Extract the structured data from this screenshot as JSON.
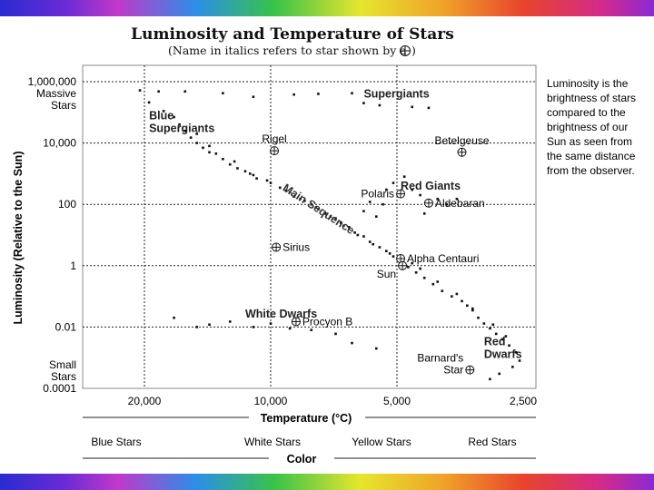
{
  "chart_data": {
    "type": "scatter",
    "title": "Luminosity and Temperature of Stars",
    "subtitle": "(Name in italics refers to star shown by a",
    "subtitle_end": ")",
    "ylabel": "Luminosity (Relative to the Sun)",
    "xlabel": "Temperature (°C)",
    "color_axis_label": "Color",
    "x_scale": "reversed",
    "y_scale": "log",
    "xlim": [
      20000,
      2500
    ],
    "ylim": [
      0.0001,
      1000000
    ],
    "grid": true,
    "x_ticks": [
      {
        "value": 20000,
        "label": "20,000"
      },
      {
        "value": 10000,
        "label": "10,000"
      },
      {
        "value": 5000,
        "label": "5,000"
      },
      {
        "value": 2500,
        "label": "2,500"
      }
    ],
    "y_ticks": [
      {
        "value": 1000000,
        "label": "1,000,000"
      },
      {
        "value": 10000,
        "label": "10,000"
      },
      {
        "value": 100,
        "label": "100"
      },
      {
        "value": 1,
        "label": "1"
      },
      {
        "value": 0.01,
        "label": "0.01"
      },
      {
        "value": 0.0001,
        "label": "0.0001"
      }
    ],
    "y_extra_labels": [
      {
        "lines": [
          "Massive",
          "Stars"
        ],
        "near": 1000000
      },
      {
        "lines": [
          "Small",
          "Stars"
        ],
        "near": 0.0001
      }
    ],
    "color_labels": [
      "Blue Stars",
      "White Stars",
      "Yellow Stars",
      "Red Stars"
    ],
    "side_note": [
      "Luminosity is the",
      "brightness of stars",
      "compared to the",
      "brightness of our",
      "Sun as seen from",
      "the same distance",
      "from the observer."
    ],
    "regions": [
      {
        "lines": [
          "Blue",
          "Supergiants"
        ],
        "x": 19500,
        "y": 60000
      },
      {
        "lines": [
          "Supergiants"
        ],
        "x": 6000,
        "y": 300000
      },
      {
        "lines": [
          "Red Giants"
        ],
        "x": 4900,
        "y": 300
      },
      {
        "lines": [
          "White Dwarfs"
        ],
        "x": 11500,
        "y": 0.02
      },
      {
        "lines": [
          "Red",
          "Dwarfs"
        ],
        "x": 3100,
        "y": 0.0025
      }
    ],
    "main_sequence_label": "Main Sequence",
    "named_stars": [
      {
        "name": "Rigel",
        "x": 9800,
        "y": 5600
      },
      {
        "name": "Betelgeuse",
        "x": 3500,
        "y": 5000
      },
      {
        "name": "Polaris",
        "x": 4900,
        "y": 220
      },
      {
        "name": "Aldebaran",
        "x": 4200,
        "y": 110
      },
      {
        "name": "Sirius",
        "x": 9700,
        "y": 4
      },
      {
        "name": "Alpha Centauri",
        "x": 4900,
        "y": 1.7
      },
      {
        "name": "Sun",
        "x": 4850,
        "y": 1
      },
      {
        "name": "Procyon B",
        "x": 8700,
        "y": 0.015
      },
      {
        "name": "Barnard's Star",
        "x": 3350,
        "y": 0.0004
      }
    ],
    "points": [
      [
        20500,
        520000
      ],
      [
        18500,
        480000
      ],
      [
        16000,
        480000
      ],
      [
        13000,
        420000
      ],
      [
        11000,
        320000
      ],
      [
        8800,
        380000
      ],
      [
        7700,
        400000
      ],
      [
        6400,
        420000
      ],
      [
        6000,
        200000
      ],
      [
        5500,
        170000
      ],
      [
        4600,
        150000
      ],
      [
        4200,
        140000
      ],
      [
        19500,
        210000
      ],
      [
        18000,
        110000
      ],
      [
        17000,
        70000
      ],
      [
        16500,
        40000
      ],
      [
        16000,
        25000
      ],
      [
        15500,
        15000
      ],
      [
        15000,
        10000
      ],
      [
        14500,
        7000
      ],
      [
        14000,
        5000
      ],
      [
        13000,
        3000
      ],
      [
        12500,
        2000
      ],
      [
        12000,
        1500
      ],
      [
        11500,
        1200
      ],
      [
        11000,
        900
      ],
      [
        10800,
        700
      ],
      [
        10000,
        500
      ],
      [
        9500,
        350
      ],
      [
        9000,
        250
      ],
      [
        8800,
        180
      ],
      [
        8300,
        130
      ],
      [
        8000,
        100
      ],
      [
        7700,
        70
      ],
      [
        7400,
        50
      ],
      [
        7000,
        35
      ],
      [
        6800,
        25
      ],
      [
        6500,
        18
      ],
      [
        6300,
        12
      ],
      [
        6000,
        9
      ],
      [
        5800,
        6
      ],
      [
        5500,
        4
      ],
      [
        5300,
        3
      ],
      [
        5100,
        2
      ],
      [
        4900,
        1.5
      ],
      [
        4700,
        0.9
      ],
      [
        4500,
        0.6
      ],
      [
        4300,
        0.4
      ],
      [
        4100,
        0.25
      ],
      [
        3900,
        0.15
      ],
      [
        3700,
        0.1
      ],
      [
        3500,
        0.07
      ],
      [
        3400,
        0.05
      ],
      [
        3300,
        0.035
      ],
      [
        3200,
        0.02
      ],
      [
        3100,
        0.013
      ],
      [
        3000,
        0.009
      ],
      [
        2900,
        0.006
      ],
      [
        2800,
        0.004
      ],
      [
        2700,
        0.0025
      ],
      [
        2600,
        0.0015
      ],
      [
        2550,
        0.0008
      ],
      [
        2650,
        0.0005
      ],
      [
        2850,
        0.0003
      ],
      [
        3000,
        0.0002
      ],
      [
        15000,
        20000
      ],
      [
        14000,
        8000
      ],
      [
        13500,
        4500
      ],
      [
        12200,
        2500
      ],
      [
        11200,
        1000
      ],
      [
        10200,
        600
      ],
      [
        9200,
        280
      ],
      [
        8500,
        150
      ],
      [
        7800,
        80
      ],
      [
        7200,
        40
      ],
      [
        6700,
        20
      ],
      [
        6200,
        10
      ],
      [
        5700,
        5
      ],
      [
        5200,
        2.5
      ],
      [
        4600,
        1.2
      ],
      [
        4400,
        0.8
      ],
      [
        4000,
        0.3
      ],
      [
        3600,
        0.12
      ],
      [
        3300,
        0.04
      ],
      [
        2950,
        0.012
      ],
      [
        2750,
        0.005
      ],
      [
        5600,
        40
      ],
      [
        5400,
        100
      ],
      [
        5300,
        300
      ],
      [
        5100,
        500
      ],
      [
        4800,
        800
      ],
      [
        4600,
        300
      ],
      [
        4400,
        200
      ],
      [
        4000,
        150
      ],
      [
        3800,
        100
      ],
      [
        3600,
        150
      ],
      [
        4300,
        50
      ],
      [
        6000,
        60
      ],
      [
        5800,
        120
      ],
      [
        17000,
        0.02
      ],
      [
        15000,
        0.01
      ],
      [
        14000,
        0.012
      ],
      [
        12500,
        0.015
      ],
      [
        11000,
        0.01
      ],
      [
        10000,
        0.013
      ],
      [
        9000,
        0.009
      ],
      [
        8000,
        0.008
      ],
      [
        7000,
        0.006
      ],
      [
        6400,
        0.003
      ],
      [
        5600,
        0.002
      ]
    ]
  }
}
